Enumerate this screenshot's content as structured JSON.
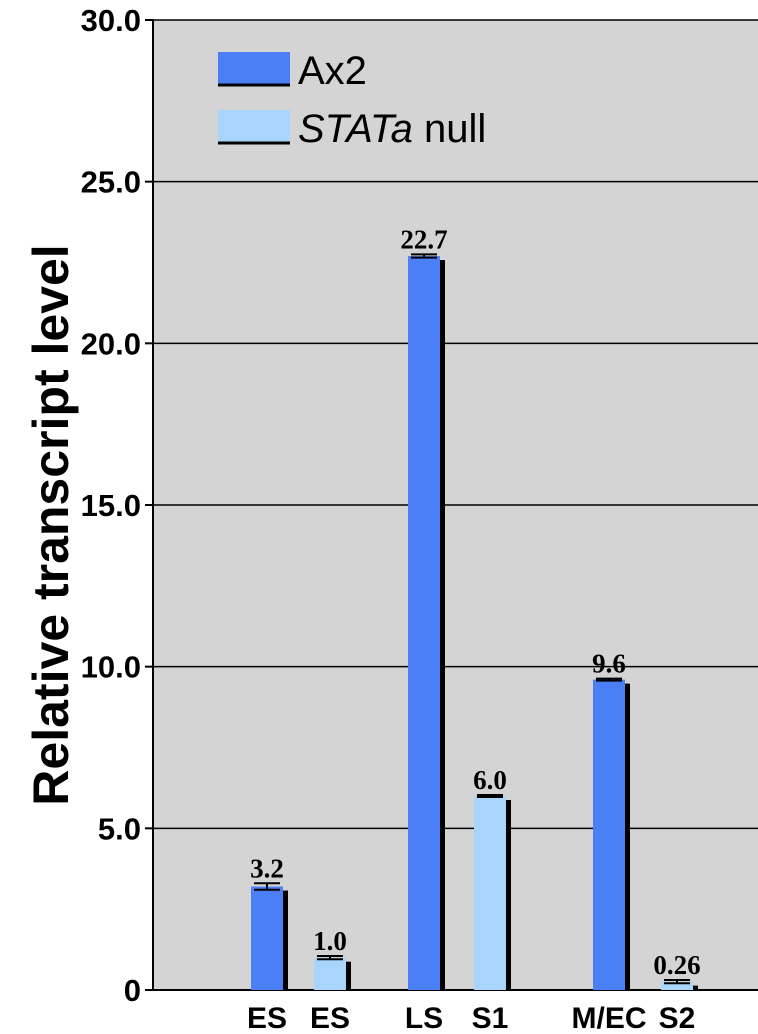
{
  "chart_data": {
    "type": "bar",
    "ylabel": "Relative transcript level",
    "ylim": [
      0,
      30
    ],
    "yticks": [
      "0",
      "5.0",
      "10.0",
      "15.0",
      "20.0",
      "25.0",
      "30.0"
    ],
    "ytick_values": [
      0,
      5,
      10,
      15,
      20,
      25,
      30
    ],
    "grid": true,
    "legend_position": "top-left",
    "legend": [
      {
        "name": "Ax2",
        "italic_part": "",
        "rest": "Ax2",
        "color": "#4a7ff6"
      },
      {
        "name": "STATa null",
        "italic_part": "STATa",
        "rest": " null",
        "color": "#a9d4fb"
      }
    ],
    "bars": [
      {
        "category": "ES",
        "series": "Ax2",
        "value": 3.2,
        "label": "3.2",
        "error": 0.1
      },
      {
        "category": "ES",
        "series": "STATa null",
        "value": 1.0,
        "label": "1.0",
        "error": 0.05
      },
      {
        "category": "LS",
        "series": "Ax2",
        "value": 22.7,
        "label": "22.7",
        "error": 0.05
      },
      {
        "category": "S1",
        "series": "STATa null",
        "value": 6.0,
        "label": "6.0",
        "error": 0.03
      },
      {
        "category": "M/EC",
        "series": "Ax2",
        "value": 9.6,
        "label": "9.6",
        "error": 0.03
      },
      {
        "category": "S2",
        "series": "STATa null",
        "value": 0.26,
        "label": "0.26",
        "error": 0.05
      }
    ],
    "colors": {
      "plot_background": "#d4d4d4",
      "gridline": "#000000",
      "Ax2": "#4a7ff6",
      "STATa null": "#a9d4fb",
      "shadow": "#000000"
    }
  }
}
